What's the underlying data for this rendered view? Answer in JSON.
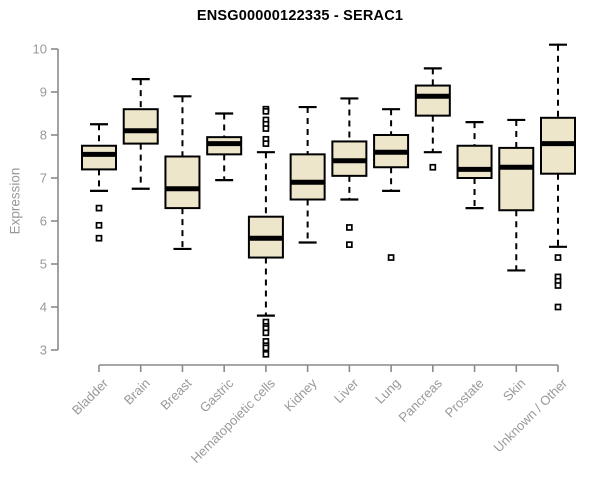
{
  "title": "ENSG00000122335 - SERAC1",
  "colors": {
    "box_fill": "#EDE6CB",
    "box_border": "#000000",
    "median": "#000000",
    "whisker": "#000000",
    "outlier_stroke": "#000000",
    "outlier_fill": "#ffffff",
    "axis_line": "#8a8a8a",
    "tick_text": "#999999",
    "title_text": "#000000"
  },
  "chart_data": {
    "type": "boxplot",
    "title": "ENSG00000122335 - SERAC1",
    "xlabel": "",
    "ylabel": "Expression",
    "ylim": [
      3,
      10
    ],
    "yticks": [
      3,
      4,
      5,
      6,
      7,
      8,
      9,
      10
    ],
    "grid": false,
    "legend": "none",
    "categories": [
      "Bladder",
      "Brain",
      "Breast",
      "Gastric",
      "Hematopoietic cells",
      "Kidney",
      "Liver",
      "Lung",
      "Pancreas",
      "Prostate",
      "Skin",
      "Unknown / Other"
    ],
    "series": [
      {
        "name": "Bladder",
        "whisker_low": 6.7,
        "q1": 7.2,
        "median": 7.55,
        "q3": 7.75,
        "whisker_high": 8.25,
        "outliers": [
          6.3,
          5.9,
          5.6
        ]
      },
      {
        "name": "Brain",
        "whisker_low": 6.75,
        "q1": 7.8,
        "median": 8.1,
        "q3": 8.6,
        "whisker_high": 9.3,
        "outliers": []
      },
      {
        "name": "Breast",
        "whisker_low": 5.35,
        "q1": 6.3,
        "median": 6.75,
        "q3": 7.5,
        "whisker_high": 8.9,
        "outliers": []
      },
      {
        "name": "Gastric",
        "whisker_low": 6.95,
        "q1": 7.55,
        "median": 7.8,
        "q3": 7.95,
        "whisker_high": 8.5,
        "outliers": []
      },
      {
        "name": "Hematopoietic cells",
        "whisker_low": 3.8,
        "q1": 5.15,
        "median": 5.6,
        "q3": 6.1,
        "whisker_high": 7.6,
        "outliers": [
          8.6,
          8.55,
          8.35,
          8.25,
          8.15,
          7.9,
          7.8,
          3.65,
          3.55,
          3.5,
          3.4,
          3.2,
          3.1,
          3.05,
          2.9
        ]
      },
      {
        "name": "Kidney",
        "whisker_low": 5.5,
        "q1": 6.5,
        "median": 6.9,
        "q3": 7.55,
        "whisker_high": 8.65,
        "outliers": []
      },
      {
        "name": "Liver",
        "whisker_low": 6.5,
        "q1": 7.05,
        "median": 7.4,
        "q3": 7.85,
        "whisker_high": 8.85,
        "outliers": [
          5.85,
          5.45
        ]
      },
      {
        "name": "Lung",
        "whisker_low": 6.7,
        "q1": 7.25,
        "median": 7.6,
        "q3": 8.0,
        "whisker_high": 8.6,
        "outliers": [
          5.15
        ]
      },
      {
        "name": "Pancreas",
        "whisker_low": 7.6,
        "q1": 8.45,
        "median": 8.9,
        "q3": 9.15,
        "whisker_high": 9.55,
        "outliers": [
          7.25
        ]
      },
      {
        "name": "Prostate",
        "whisker_low": 6.3,
        "q1": 7.0,
        "median": 7.2,
        "q3": 7.75,
        "whisker_high": 8.3,
        "outliers": []
      },
      {
        "name": "Skin",
        "whisker_low": 4.85,
        "q1": 6.25,
        "median": 7.25,
        "q3": 7.7,
        "whisker_high": 8.35,
        "outliers": []
      },
      {
        "name": "Unknown / Other",
        "whisker_low": 5.4,
        "q1": 7.1,
        "median": 7.8,
        "q3": 8.4,
        "whisker_high": 10.1,
        "outliers": [
          5.15,
          4.7,
          4.6,
          4.5,
          4.0
        ]
      }
    ]
  }
}
